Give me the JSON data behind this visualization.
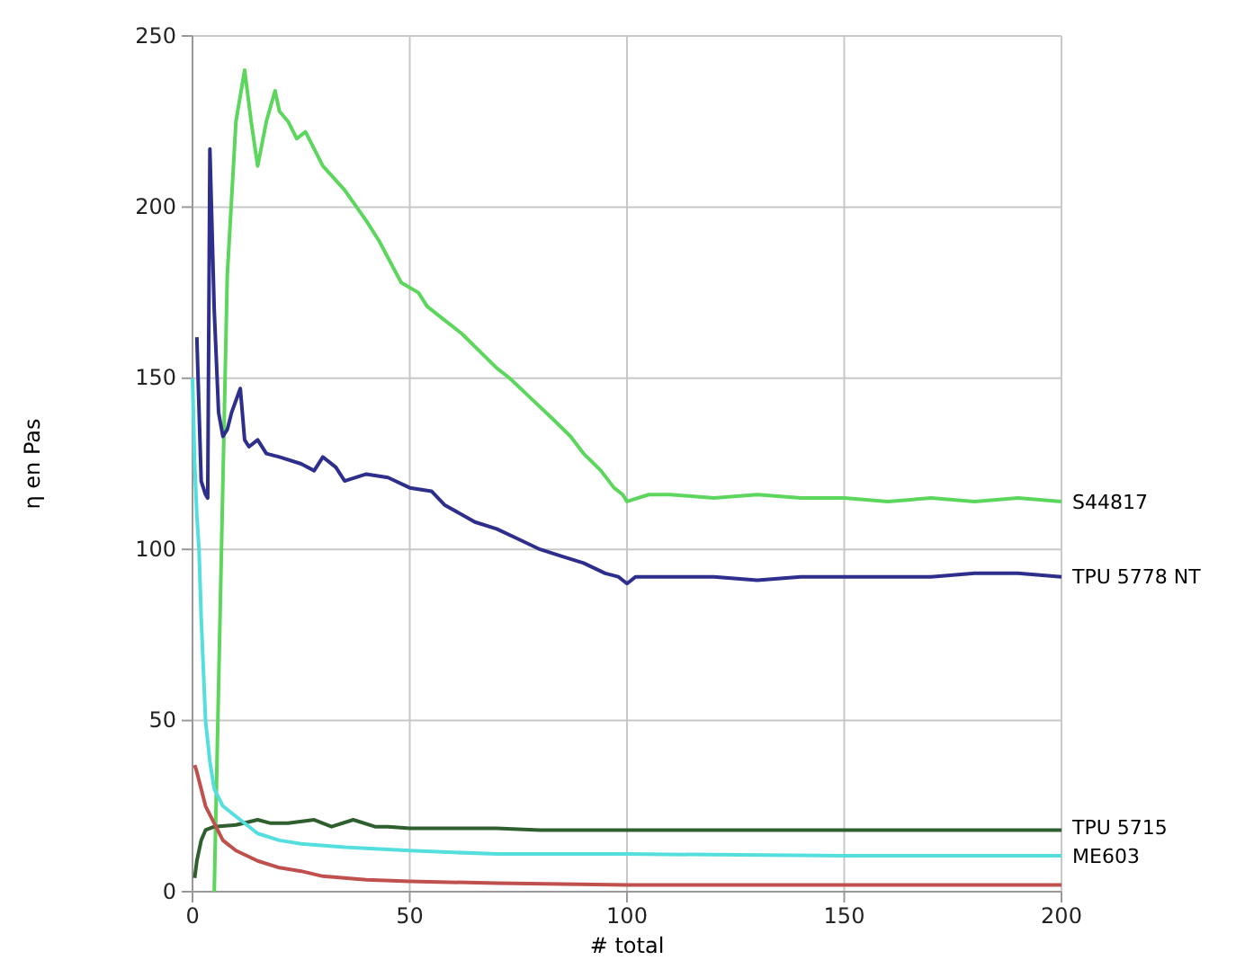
{
  "chart_data": {
    "type": "line",
    "xlabel": "# total",
    "ylabel": "η en Pas",
    "xlim": [
      0,
      200
    ],
    "ylim": [
      0,
      250
    ],
    "xticks": [
      0,
      50,
      100,
      150,
      200
    ],
    "yticks": [
      0,
      50,
      100,
      150,
      200,
      250
    ],
    "grid": true,
    "marker": "none",
    "line_style": "solid",
    "series": [
      {
        "name": "S44817",
        "color": "#5cd65c",
        "x": [
          5,
          6,
          8,
          10,
          12,
          13.5,
          15,
          17,
          19,
          20,
          22,
          24,
          26,
          30,
          35,
          40,
          43,
          48,
          52,
          54,
          58,
          62,
          66,
          70,
          73,
          78,
          83,
          87,
          90,
          94,
          97,
          99,
          100,
          105,
          110,
          120,
          130,
          140,
          150,
          160,
          170,
          180,
          190,
          200
        ],
        "values": [
          0,
          60,
          180,
          225,
          240,
          225,
          212,
          225,
          234,
          228,
          225,
          220,
          222,
          212,
          205,
          196,
          190,
          178,
          175,
          171,
          167,
          163,
          158,
          153,
          150,
          144,
          138,
          133,
          128,
          123,
          118,
          116,
          114,
          116,
          116,
          115,
          116,
          115,
          115,
          114,
          115,
          114,
          115,
          114
        ]
      },
      {
        "name": "TPU 5778 NT",
        "color": "#2e2e8c",
        "x": [
          1,
          2,
          3,
          3.5,
          4,
          5,
          6,
          7,
          8,
          9,
          11,
          12,
          13,
          15,
          17,
          20,
          25,
          28,
          30,
          33,
          35,
          40,
          45,
          50,
          55,
          58,
          65,
          70,
          75,
          80,
          85,
          90,
          95,
          98,
          100,
          102,
          110,
          120,
          130,
          140,
          150,
          160,
          170,
          180,
          190,
          200
        ],
        "values": [
          162,
          120,
          116,
          115,
          217,
          170,
          140,
          133,
          135,
          140,
          147,
          132,
          130,
          132,
          128,
          127,
          125,
          123,
          127,
          124,
          120,
          122,
          121,
          118,
          117,
          113,
          108,
          106,
          103,
          100,
          98,
          96,
          93,
          92,
          90,
          92,
          92,
          92,
          91,
          92,
          92,
          92,
          92,
          93,
          93,
          92
        ]
      },
      {
        "name": "TPU 5715",
        "color": "#2f5f2f",
        "x": [
          0.5,
          1,
          2,
          3,
          5,
          10,
          15,
          18,
          22,
          28,
          32,
          37,
          42,
          45,
          50,
          60,
          70,
          80,
          100,
          120,
          150,
          180,
          200
        ],
        "values": [
          4,
          9,
          15,
          18,
          19,
          19.5,
          21,
          20,
          20,
          21,
          19,
          21,
          19,
          19,
          18.5,
          18.5,
          18.5,
          18,
          18,
          18,
          18,
          18,
          18
        ]
      },
      {
        "name": "ME603",
        "color": "#55dede",
        "x": [
          0,
          0.5,
          1,
          1.5,
          2,
          3,
          4,
          5,
          7,
          10,
          15,
          20,
          25,
          35,
          50,
          70,
          100,
          150,
          200
        ],
        "values": [
          150,
          125,
          110,
          100,
          80,
          50,
          38,
          30,
          25,
          22,
          17,
          15,
          14,
          13,
          12,
          11,
          11,
          10.5,
          10.5
        ]
      },
      {
        "color": "#c0504d",
        "x": [
          0.5,
          1,
          2,
          3,
          5,
          7,
          10,
          15,
          20,
          25,
          30,
          40,
          50,
          70,
          100,
          150,
          200
        ],
        "values": [
          37,
          35,
          30,
          25,
          20,
          15,
          12,
          9,
          7,
          6,
          4.5,
          3.5,
          3,
          2.5,
          2,
          2,
          2
        ]
      }
    ]
  }
}
